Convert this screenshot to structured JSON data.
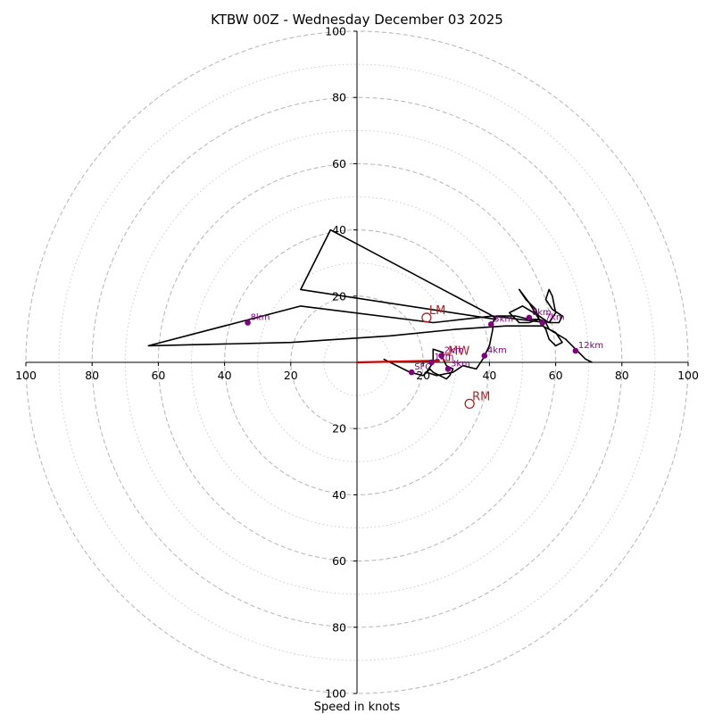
{
  "chart_data": {
    "type": "hodograph",
    "title": "KTBW 00Z - Wednesday December 03 2025",
    "xlabel": "Speed in knots",
    "range": [
      -100,
      100
    ],
    "ring_labels": [
      "20",
      "40",
      "60",
      "80",
      "100"
    ],
    "ring_values": [
      20,
      40,
      60,
      80,
      100
    ],
    "minor_ring_values": [
      10,
      30,
      50,
      70,
      90
    ],
    "x_ticks": [
      {
        "value": -100,
        "label": "100"
      },
      {
        "value": -80,
        "label": "80"
      },
      {
        "value": -60,
        "label": "60"
      },
      {
        "value": -40,
        "label": "40"
      },
      {
        "value": -20,
        "label": "20"
      },
      {
        "value": 20,
        "label": "20"
      },
      {
        "value": 40,
        "label": "40"
      },
      {
        "value": 60,
        "label": "60"
      },
      {
        "value": 80,
        "label": "80"
      },
      {
        "value": 100,
        "label": "100"
      }
    ],
    "y_ticks": [
      {
        "value": 100,
        "label": "100"
      },
      {
        "value": 80,
        "label": "80"
      },
      {
        "value": 60,
        "label": "60"
      },
      {
        "value": 40,
        "label": "40"
      },
      {
        "value": 20,
        "label": "20"
      },
      {
        "value": -20,
        "label": "20"
      },
      {
        "value": -40,
        "label": "40"
      },
      {
        "value": -60,
        "label": "60"
      },
      {
        "value": -80,
        "label": "80"
      },
      {
        "value": -100,
        "label": "100"
      }
    ],
    "hodograph_line": [
      [
        8,
        1
      ],
      [
        16,
        -3
      ],
      [
        20,
        -4
      ],
      [
        22,
        -2
      ],
      [
        23,
        -3
      ],
      [
        25,
        -4
      ],
      [
        27,
        -5
      ],
      [
        28,
        -4
      ],
      [
        29,
        -2
      ],
      [
        27,
        -1
      ],
      [
        26,
        1
      ],
      [
        25,
        2
      ],
      [
        26,
        3
      ],
      [
        23,
        4
      ],
      [
        23,
        0
      ],
      [
        21,
        -3
      ],
      [
        24,
        -4
      ],
      [
        29,
        -3
      ],
      [
        32,
        -1
      ],
      [
        36,
        -2
      ],
      [
        38,
        1
      ],
      [
        40,
        5
      ],
      [
        41,
        10
      ],
      [
        41,
        12
      ],
      [
        42,
        14
      ],
      [
        48,
        14
      ],
      [
        52,
        13
      ],
      [
        55,
        13
      ],
      [
        52,
        12
      ],
      [
        49,
        12
      ],
      [
        46,
        15
      ],
      [
        50,
        17
      ],
      [
        55,
        14
      ],
      [
        58,
        12
      ],
      [
        60,
        15
      ],
      [
        59,
        20
      ],
      [
        58,
        22
      ],
      [
        57,
        19
      ],
      [
        59,
        16
      ],
      [
        62,
        14
      ],
      [
        61,
        12
      ],
      [
        58,
        12
      ],
      [
        55,
        13
      ],
      [
        54,
        16
      ],
      [
        51,
        19
      ],
      [
        49,
        22
      ],
      [
        52,
        18
      ],
      [
        55,
        13
      ],
      [
        57,
        10
      ],
      [
        58,
        7
      ],
      [
        60,
        5
      ],
      [
        62,
        6
      ],
      [
        60,
        9
      ],
      [
        56,
        11
      ],
      [
        45,
        11
      ],
      [
        30,
        10
      ],
      [
        10,
        8
      ],
      [
        -20,
        6
      ],
      [
        -63,
        5
      ],
      [
        -17,
        17
      ],
      [
        23,
        12
      ],
      [
        41,
        14
      ],
      [
        42,
        13
      ],
      [
        -17,
        22
      ],
      [
        -8,
        40
      ],
      [
        41,
        14
      ],
      [
        57,
        12
      ],
      [
        58,
        10
      ],
      [
        63,
        7
      ],
      [
        66,
        4
      ],
      [
        69,
        1
      ],
      [
        71,
        0
      ]
    ],
    "km_markers": [
      {
        "label": "SFC",
        "u": 16.5,
        "v": -3
      },
      {
        "label": "1km",
        "u": 22.5,
        "v": 0
      },
      {
        "label": "2km",
        "u": 25.5,
        "v": 2
      },
      {
        "label": "3km",
        "u": 27.5,
        "v": -2
      },
      {
        "label": "4km",
        "u": 38.5,
        "v": 2
      },
      {
        "label": "5km",
        "u": 40.5,
        "v": 11.5
      },
      {
        "label": "6km",
        "u": 52,
        "v": 13.5
      },
      {
        "label": "7km",
        "u": 56,
        "v": 12
      },
      {
        "label": "8km",
        "u": -33,
        "v": 12
      },
      {
        "label": "12km",
        "u": 66,
        "v": 3.5
      }
    ],
    "bunkers_lm": {
      "label": "LM",
      "u": 21,
      "v": 13.5
    },
    "bunkers_rm": {
      "label": "RM",
      "u": 34,
      "v": -12.5
    },
    "mean_wind": {
      "label": "MW",
      "u": 27,
      "v": 1.5
    },
    "storm_motion_vector": {
      "from": [
        0,
        0
      ],
      "to": [
        25,
        0.5
      ]
    },
    "colors": {
      "ring_major": "#bbbbbb",
      "ring_minor": "#cccccc",
      "hodograph": "#000000",
      "km_marker": "#800080",
      "motion": "#b22222",
      "vector": "#cc0000"
    }
  }
}
